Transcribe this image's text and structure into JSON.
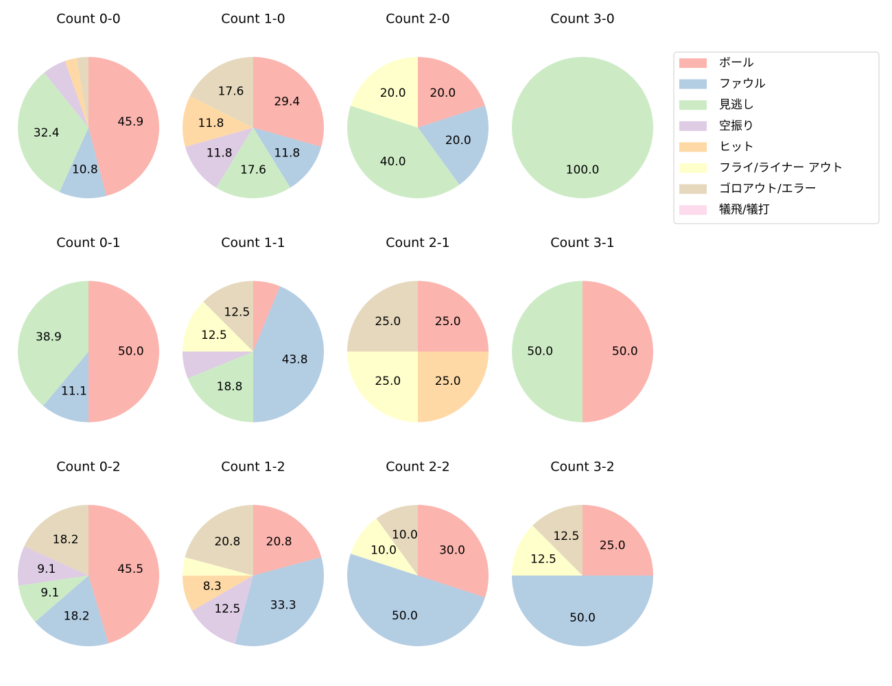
{
  "chart_data": [
    {
      "type": "pie",
      "title": "Count 0-0",
      "values": [
        45.9,
        10.8,
        32.4,
        5.4,
        2.7,
        0,
        2.7,
        0
      ],
      "value_labels": [
        "45.9",
        "10.8",
        "32.4",
        null,
        null,
        null,
        null,
        null
      ]
    },
    {
      "type": "pie",
      "title": "Count 1-0",
      "values": [
        29.4,
        11.8,
        17.6,
        11.8,
        11.8,
        0,
        17.6,
        0
      ],
      "value_labels": [
        "29.4",
        "11.8",
        "17.6",
        "11.8",
        "11.8",
        null,
        "17.6",
        null
      ]
    },
    {
      "type": "pie",
      "title": "Count 2-0",
      "values": [
        20,
        20,
        40,
        0,
        0,
        20,
        0,
        0
      ],
      "value_labels": [
        "20.0",
        "20.0",
        "40.0",
        null,
        null,
        "20.0",
        null,
        null
      ]
    },
    {
      "type": "pie",
      "title": "Count 3-0",
      "values": [
        0,
        0,
        100,
        0,
        0,
        0,
        0,
        0
      ],
      "value_labels": [
        null,
        null,
        "100.0",
        null,
        null,
        null,
        null,
        null
      ]
    },
    {
      "type": "pie",
      "title": "Count 0-1",
      "values": [
        50,
        11.1,
        38.9,
        0,
        0,
        0,
        0,
        0
      ],
      "value_labels": [
        "50.0",
        "11.1",
        "38.9",
        null,
        null,
        null,
        null,
        null
      ]
    },
    {
      "type": "pie",
      "title": "Count 1-1",
      "values": [
        6.2,
        43.8,
        18.8,
        6.2,
        0,
        12.5,
        12.5,
        0
      ],
      "value_labels": [
        null,
        "43.8",
        "18.8",
        null,
        null,
        "12.5",
        "12.5",
        null
      ]
    },
    {
      "type": "pie",
      "title": "Count 2-1",
      "values": [
        25,
        0,
        0,
        0,
        25,
        25,
        25,
        0
      ],
      "value_labels": [
        "25.0",
        null,
        null,
        null,
        "25.0",
        "25.0",
        "25.0",
        null
      ]
    },
    {
      "type": "pie",
      "title": "Count 3-1",
      "values": [
        50,
        0,
        50,
        0,
        0,
        0,
        0,
        0
      ],
      "value_labels": [
        "50.0",
        null,
        "50.0",
        null,
        null,
        null,
        null,
        null
      ]
    },
    {
      "type": "pie",
      "title": "Count 0-2",
      "values": [
        45.5,
        18.2,
        9.1,
        9.1,
        0,
        0,
        18.2,
        0
      ],
      "value_labels": [
        "45.5",
        "18.2",
        "9.1",
        "9.1",
        null,
        null,
        "18.2",
        null
      ]
    },
    {
      "type": "pie",
      "title": "Count 1-2",
      "values": [
        20.8,
        33.3,
        0,
        12.5,
        8.3,
        4.2,
        20.8,
        0
      ],
      "value_labels": [
        "20.8",
        "33.3",
        null,
        "12.5",
        "8.3",
        null,
        "20.8",
        null
      ]
    },
    {
      "type": "pie",
      "title": "Count 2-2",
      "values": [
        30,
        50,
        0,
        0,
        0,
        10,
        10,
        0
      ],
      "value_labels": [
        "30.0",
        "50.0",
        null,
        null,
        null,
        "10.0",
        "10.0",
        null
      ]
    },
    {
      "type": "pie",
      "title": "Count 3-2",
      "values": [
        25,
        50,
        0,
        0,
        0,
        12.5,
        12.5,
        0
      ],
      "value_labels": [
        "25.0",
        "50.0",
        null,
        null,
        null,
        "12.5",
        "12.5",
        null
      ]
    }
  ],
  "legend": {
    "categories": [
      "ボール",
      "ファウル",
      "見逃し",
      "空振り",
      "ヒット",
      "フライ/ライナー アウト",
      "ゴロアウト/エラー",
      "犠飛/犠打"
    ],
    "colors": [
      "#fbb4ae",
      "#b3cde3",
      "#ccebc5",
      "#decbe4",
      "#fed9a6",
      "#ffffcc",
      "#e5d8bd",
      "#fddaec"
    ],
    "corner": "upper right"
  }
}
